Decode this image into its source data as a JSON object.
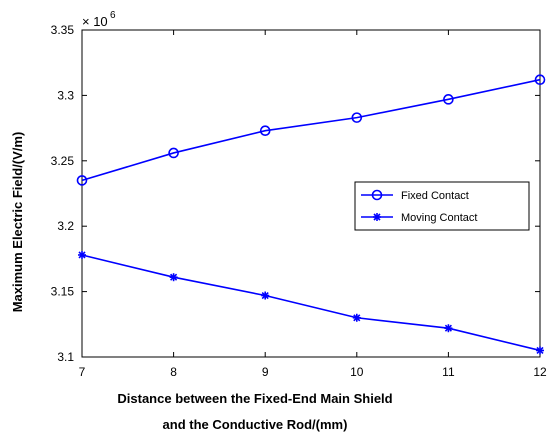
{
  "chart_data": {
    "type": "line",
    "title": "",
    "xlabel_line1": "Distance between the Fixed-End Main Shield",
    "xlabel_line2": "and the Conductive Rod/(mm)",
    "ylabel": "Maximum Electric Field/(V/m)",
    "y_multiplier_base": "× 10",
    "y_multiplier_exp": "6",
    "x": [
      7,
      8,
      9,
      10,
      11,
      12
    ],
    "xlim": [
      7,
      12
    ],
    "ylim": [
      3.1,
      3.35
    ],
    "xticks": [
      "7",
      "8",
      "9",
      "10",
      "11",
      "12"
    ],
    "yticks": [
      "3.1",
      "3.15",
      "3.2",
      "3.25",
      "3.3",
      "3.35"
    ],
    "grid": false,
    "legend_position": "right",
    "series": [
      {
        "name": "Fixed Contact",
        "marker": "circle",
        "color": "#0000ff",
        "values": [
          3.235,
          3.256,
          3.273,
          3.283,
          3.297,
          3.312
        ]
      },
      {
        "name": "Moving Contact",
        "marker": "asterisk",
        "color": "#0000ff",
        "values": [
          3.178,
          3.161,
          3.147,
          3.13,
          3.122,
          3.105
        ]
      }
    ]
  }
}
